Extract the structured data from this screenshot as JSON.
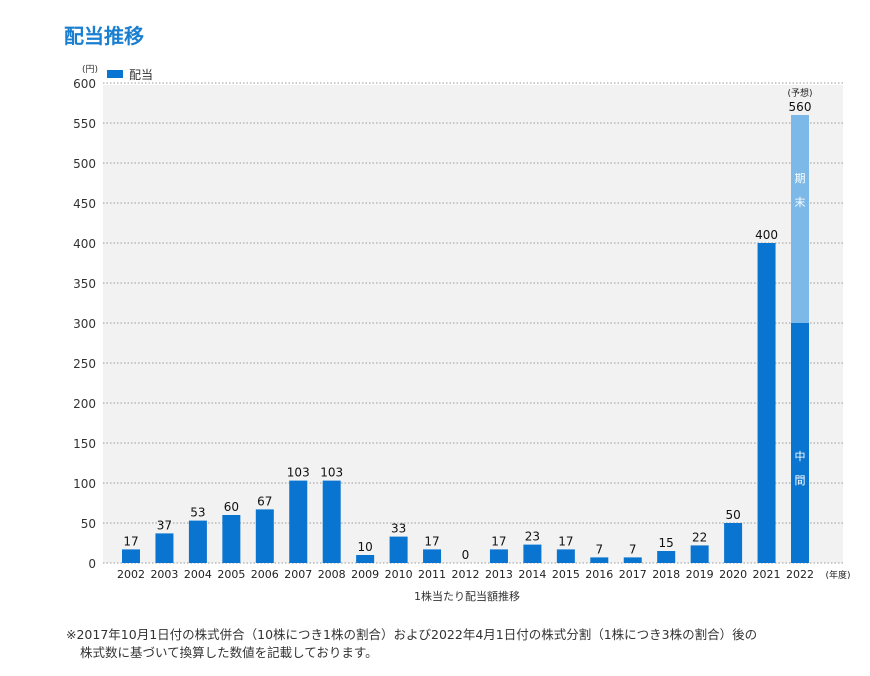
{
  "title": "配当推移",
  "chart_data": {
    "type": "bar",
    "stacked_last": true,
    "unit_label": "(円)",
    "x_unit_label": "(年度)",
    "xlabel": "1株当たり配当額推移",
    "legend": [
      {
        "name": "配当",
        "color": "#0a74d1"
      }
    ],
    "legend_position": "top-left",
    "ylim": [
      0,
      600
    ],
    "yticks": [
      0,
      50,
      100,
      150,
      200,
      250,
      300,
      350,
      400,
      450,
      500,
      550,
      600
    ],
    "grid": true,
    "categories": [
      "2002",
      "2003",
      "2004",
      "2005",
      "2006",
      "2007",
      "2008",
      "2009",
      "2010",
      "2011",
      "2012",
      "2013",
      "2014",
      "2015",
      "2016",
      "2017",
      "2018",
      "2019",
      "2020",
      "2021",
      "2022"
    ],
    "values": [
      17,
      37,
      53,
      60,
      67,
      103,
      103,
      10,
      33,
      17,
      0,
      17,
      23,
      17,
      7,
      7,
      15,
      22,
      50,
      400,
      560
    ],
    "forecast_2022": {
      "label": "(予想)",
      "total": 560,
      "segments": [
        {
          "name": "中間",
          "value": 300,
          "color": "#0a74d1"
        },
        {
          "name": "期末",
          "value": 260,
          "color": "#7cb9e8"
        }
      ]
    }
  },
  "note": {
    "line1": "※2017年10月1日付の株式併合（10株につき1株の割合）および2022年4月1日付の株式分割（1株につき3株の割合）後の",
    "line2": "株式数に基づいて換算した数値を記載しております。"
  }
}
